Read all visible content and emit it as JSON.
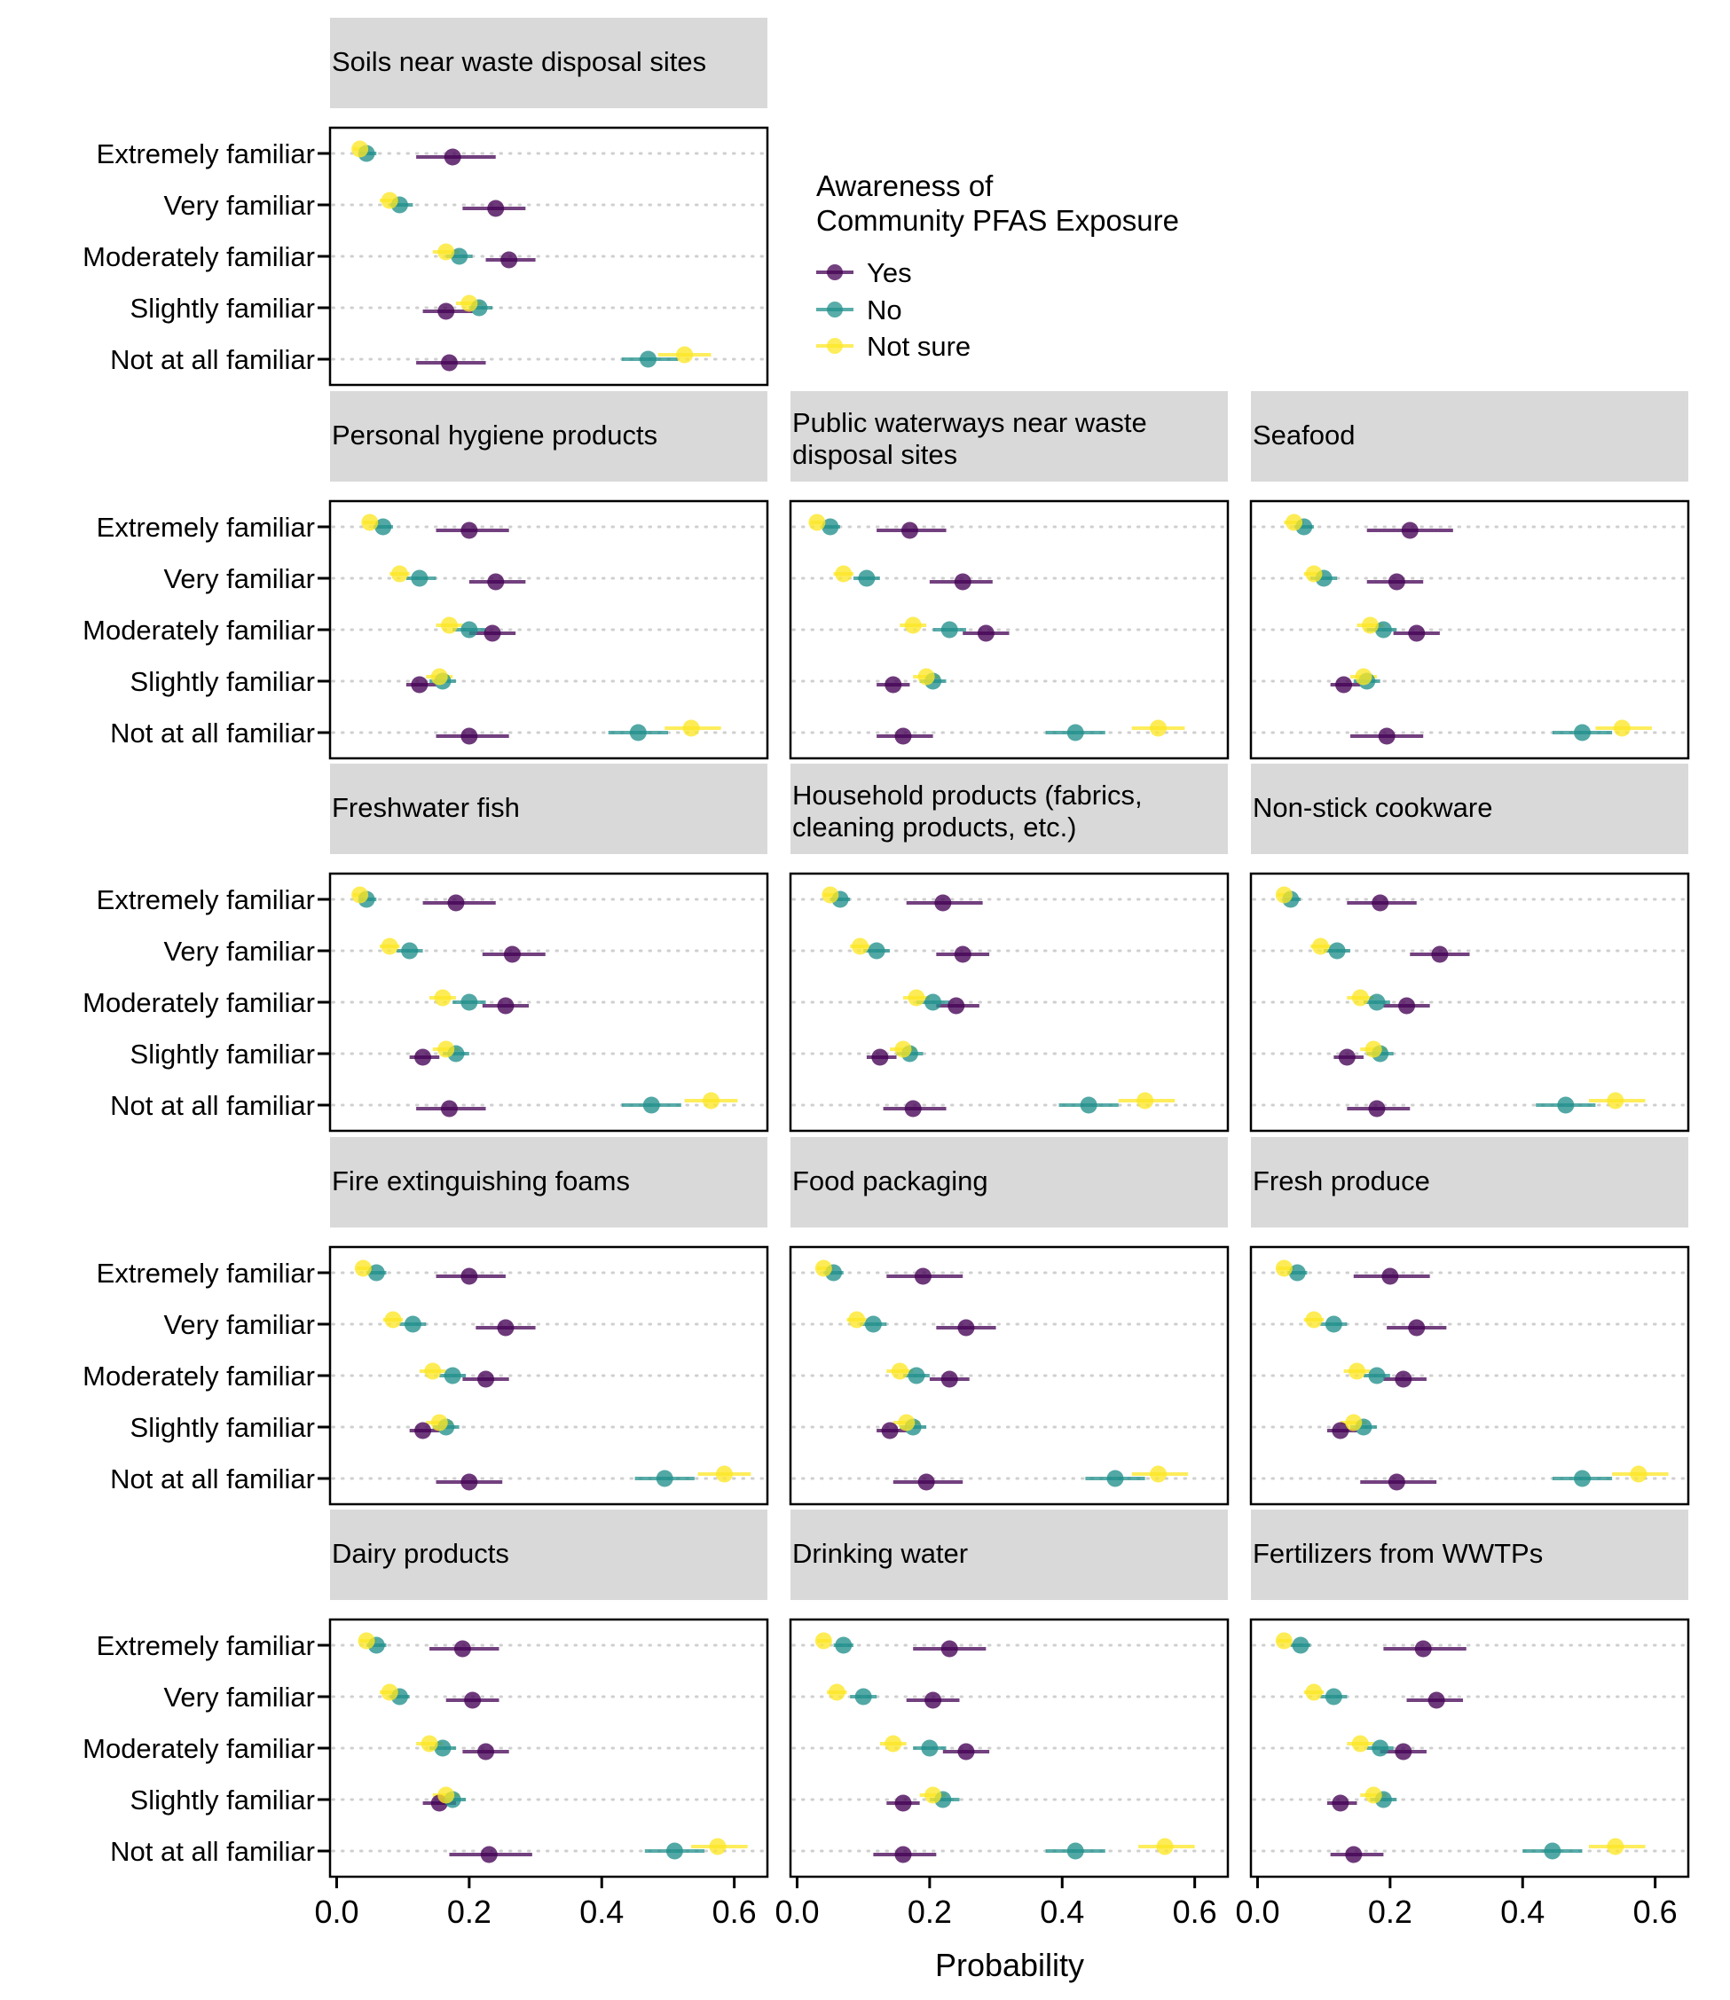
{
  "chart_data": {
    "type": "scatter",
    "subtype": "faceted dot-and-interval plot",
    "xlabel": "Probability",
    "ylabel": "",
    "xlim": [
      -0.01,
      0.65
    ],
    "x_ticks": [
      "0.0",
      "0.2",
      "0.4",
      "0.6"
    ],
    "x_tick_values": [
      0.0,
      0.2,
      0.4,
      0.6
    ],
    "categories": [
      "Extremely familiar",
      "Very familiar",
      "Moderately familiar",
      "Slightly familiar",
      "Not at all familiar"
    ],
    "grid": "dotted horizontal gridlines",
    "legend": {
      "title_lines": [
        "Awareness of",
        "Community PFAS Exposure"
      ],
      "placement": "top-center",
      "entries": [
        {
          "name": "Yes",
          "color": "#440154"
        },
        {
          "name": "No",
          "color": "#21908C"
        },
        {
          "name": "Not sure",
          "color": "#FDE725"
        }
      ]
    },
    "series_colors": {
      "yes": "#440154",
      "no": "#21908C",
      "not_sure": "#FDE725"
    },
    "panels": [
      {
        "title_lines": [
          "Soils near waste disposal sites"
        ],
        "yes": [
          [
            0.175,
            0.12,
            0.24
          ],
          [
            0.24,
            0.19,
            0.285
          ],
          [
            0.26,
            0.225,
            0.3
          ],
          [
            0.165,
            0.13,
            0.205
          ],
          [
            0.17,
            0.12,
            0.225
          ]
        ],
        "no": [
          [
            0.045,
            0.035,
            0.06
          ],
          [
            0.095,
            0.08,
            0.115
          ],
          [
            0.185,
            0.165,
            0.205
          ],
          [
            0.215,
            0.2,
            0.235
          ],
          [
            0.47,
            0.43,
            0.515
          ]
        ],
        "not_sure": [
          [
            0.035,
            0.025,
            0.05
          ],
          [
            0.08,
            0.065,
            0.095
          ],
          [
            0.165,
            0.145,
            0.185
          ],
          [
            0.2,
            0.18,
            0.22
          ],
          [
            0.525,
            0.485,
            0.565
          ]
        ]
      },
      {
        "title_lines": [
          "Personal hygiene products"
        ],
        "yes": [
          [
            0.2,
            0.15,
            0.26
          ],
          [
            0.24,
            0.2,
            0.285
          ],
          [
            0.235,
            0.2,
            0.27
          ],
          [
            0.125,
            0.105,
            0.15
          ],
          [
            0.2,
            0.15,
            0.26
          ]
        ],
        "no": [
          [
            0.07,
            0.055,
            0.085
          ],
          [
            0.125,
            0.105,
            0.15
          ],
          [
            0.2,
            0.175,
            0.225
          ],
          [
            0.16,
            0.14,
            0.18
          ],
          [
            0.455,
            0.41,
            0.5
          ]
        ],
        "not_sure": [
          [
            0.05,
            0.04,
            0.065
          ],
          [
            0.095,
            0.08,
            0.11
          ],
          [
            0.17,
            0.15,
            0.19
          ],
          [
            0.155,
            0.135,
            0.175
          ],
          [
            0.535,
            0.495,
            0.58
          ]
        ]
      },
      {
        "title_lines": [
          "Public waterways near waste",
          "disposal sites"
        ],
        "yes": [
          [
            0.17,
            0.12,
            0.225
          ],
          [
            0.25,
            0.2,
            0.295
          ],
          [
            0.285,
            0.25,
            0.32
          ],
          [
            0.145,
            0.12,
            0.17
          ],
          [
            0.16,
            0.12,
            0.205
          ]
        ],
        "no": [
          [
            0.05,
            0.04,
            0.065
          ],
          [
            0.105,
            0.085,
            0.125
          ],
          [
            0.23,
            0.205,
            0.255
          ],
          [
            0.205,
            0.185,
            0.225
          ],
          [
            0.42,
            0.375,
            0.465
          ]
        ],
        "not_sure": [
          [
            0.03,
            0.02,
            0.04
          ],
          [
            0.07,
            0.055,
            0.085
          ],
          [
            0.175,
            0.155,
            0.195
          ],
          [
            0.195,
            0.175,
            0.215
          ],
          [
            0.545,
            0.505,
            0.585
          ]
        ]
      },
      {
        "title_lines": [
          "Seafood"
        ],
        "yes": [
          [
            0.23,
            0.165,
            0.295
          ],
          [
            0.21,
            0.165,
            0.25
          ],
          [
            0.24,
            0.205,
            0.275
          ],
          [
            0.13,
            0.11,
            0.155
          ],
          [
            0.195,
            0.14,
            0.25
          ]
        ],
        "no": [
          [
            0.07,
            0.055,
            0.085
          ],
          [
            0.1,
            0.08,
            0.12
          ],
          [
            0.19,
            0.165,
            0.21
          ],
          [
            0.165,
            0.145,
            0.185
          ],
          [
            0.49,
            0.445,
            0.535
          ]
        ],
        "not_sure": [
          [
            0.055,
            0.04,
            0.07
          ],
          [
            0.085,
            0.07,
            0.1
          ],
          [
            0.17,
            0.15,
            0.19
          ],
          [
            0.16,
            0.14,
            0.18
          ],
          [
            0.55,
            0.51,
            0.595
          ]
        ]
      },
      {
        "title_lines": [
          "Freshwater fish"
        ],
        "yes": [
          [
            0.18,
            0.13,
            0.24
          ],
          [
            0.265,
            0.22,
            0.315
          ],
          [
            0.255,
            0.22,
            0.29
          ],
          [
            0.13,
            0.11,
            0.155
          ],
          [
            0.17,
            0.12,
            0.225
          ]
        ],
        "no": [
          [
            0.045,
            0.035,
            0.06
          ],
          [
            0.11,
            0.09,
            0.13
          ],
          [
            0.2,
            0.175,
            0.225
          ],
          [
            0.18,
            0.16,
            0.2
          ],
          [
            0.475,
            0.43,
            0.52
          ]
        ],
        "not_sure": [
          [
            0.035,
            0.025,
            0.045
          ],
          [
            0.08,
            0.065,
            0.095
          ],
          [
            0.16,
            0.14,
            0.18
          ],
          [
            0.165,
            0.145,
            0.185
          ],
          [
            0.565,
            0.525,
            0.605
          ]
        ]
      },
      {
        "title_lines": [
          "Household products (fabrics,",
          "cleaning products, etc.)"
        ],
        "yes": [
          [
            0.22,
            0.165,
            0.28
          ],
          [
            0.25,
            0.21,
            0.29
          ],
          [
            0.24,
            0.21,
            0.275
          ],
          [
            0.125,
            0.105,
            0.15
          ],
          [
            0.175,
            0.13,
            0.225
          ]
        ],
        "no": [
          [
            0.065,
            0.05,
            0.08
          ],
          [
            0.12,
            0.1,
            0.14
          ],
          [
            0.205,
            0.18,
            0.23
          ],
          [
            0.17,
            0.15,
            0.19
          ],
          [
            0.44,
            0.395,
            0.485
          ]
        ],
        "not_sure": [
          [
            0.05,
            0.04,
            0.06
          ],
          [
            0.095,
            0.08,
            0.11
          ],
          [
            0.18,
            0.16,
            0.2
          ],
          [
            0.16,
            0.14,
            0.18
          ],
          [
            0.525,
            0.485,
            0.57
          ]
        ]
      },
      {
        "title_lines": [
          "Non-stick cookware"
        ],
        "yes": [
          [
            0.185,
            0.135,
            0.24
          ],
          [
            0.275,
            0.23,
            0.32
          ],
          [
            0.225,
            0.19,
            0.26
          ],
          [
            0.135,
            0.115,
            0.16
          ],
          [
            0.18,
            0.135,
            0.23
          ]
        ],
        "no": [
          [
            0.05,
            0.04,
            0.065
          ],
          [
            0.12,
            0.1,
            0.14
          ],
          [
            0.18,
            0.16,
            0.2
          ],
          [
            0.185,
            0.165,
            0.205
          ],
          [
            0.465,
            0.42,
            0.51
          ]
        ],
        "not_sure": [
          [
            0.04,
            0.03,
            0.05
          ],
          [
            0.095,
            0.08,
            0.11
          ],
          [
            0.155,
            0.135,
            0.175
          ],
          [
            0.175,
            0.155,
            0.195
          ],
          [
            0.54,
            0.5,
            0.585
          ]
        ]
      },
      {
        "title_lines": [
          "Fire extinguishing foams"
        ],
        "yes": [
          [
            0.2,
            0.15,
            0.255
          ],
          [
            0.255,
            0.21,
            0.3
          ],
          [
            0.225,
            0.19,
            0.26
          ],
          [
            0.13,
            0.11,
            0.155
          ],
          [
            0.2,
            0.15,
            0.25
          ]
        ],
        "no": [
          [
            0.06,
            0.045,
            0.075
          ],
          [
            0.115,
            0.095,
            0.135
          ],
          [
            0.175,
            0.155,
            0.195
          ],
          [
            0.165,
            0.145,
            0.185
          ],
          [
            0.495,
            0.45,
            0.54
          ]
        ],
        "not_sure": [
          [
            0.04,
            0.03,
            0.055
          ],
          [
            0.085,
            0.07,
            0.1
          ],
          [
            0.145,
            0.125,
            0.165
          ],
          [
            0.155,
            0.135,
            0.175
          ],
          [
            0.585,
            0.545,
            0.625
          ]
        ]
      },
      {
        "title_lines": [
          "Food packaging"
        ],
        "yes": [
          [
            0.19,
            0.135,
            0.25
          ],
          [
            0.255,
            0.21,
            0.3
          ],
          [
            0.23,
            0.2,
            0.26
          ],
          [
            0.14,
            0.12,
            0.165
          ],
          [
            0.195,
            0.145,
            0.25
          ]
        ],
        "no": [
          [
            0.055,
            0.04,
            0.07
          ],
          [
            0.115,
            0.095,
            0.135
          ],
          [
            0.18,
            0.16,
            0.2
          ],
          [
            0.175,
            0.155,
            0.195
          ],
          [
            0.48,
            0.435,
            0.525
          ]
        ],
        "not_sure": [
          [
            0.04,
            0.03,
            0.055
          ],
          [
            0.09,
            0.075,
            0.105
          ],
          [
            0.155,
            0.135,
            0.175
          ],
          [
            0.165,
            0.145,
            0.185
          ],
          [
            0.545,
            0.505,
            0.59
          ]
        ]
      },
      {
        "title_lines": [
          "Fresh produce"
        ],
        "yes": [
          [
            0.2,
            0.145,
            0.26
          ],
          [
            0.24,
            0.195,
            0.285
          ],
          [
            0.22,
            0.19,
            0.255
          ],
          [
            0.125,
            0.105,
            0.15
          ],
          [
            0.21,
            0.155,
            0.27
          ]
        ],
        "no": [
          [
            0.06,
            0.045,
            0.075
          ],
          [
            0.115,
            0.095,
            0.135
          ],
          [
            0.18,
            0.16,
            0.2
          ],
          [
            0.16,
            0.14,
            0.18
          ],
          [
            0.49,
            0.445,
            0.535
          ]
        ],
        "not_sure": [
          [
            0.04,
            0.03,
            0.055
          ],
          [
            0.085,
            0.07,
            0.1
          ],
          [
            0.15,
            0.13,
            0.17
          ],
          [
            0.145,
            0.125,
            0.165
          ],
          [
            0.575,
            0.535,
            0.62
          ]
        ]
      },
      {
        "title_lines": [
          "Dairy products"
        ],
        "yes": [
          [
            0.19,
            0.14,
            0.245
          ],
          [
            0.205,
            0.165,
            0.245
          ],
          [
            0.225,
            0.19,
            0.26
          ],
          [
            0.155,
            0.13,
            0.18
          ],
          [
            0.23,
            0.17,
            0.295
          ]
        ],
        "no": [
          [
            0.06,
            0.045,
            0.075
          ],
          [
            0.095,
            0.08,
            0.11
          ],
          [
            0.16,
            0.14,
            0.18
          ],
          [
            0.175,
            0.155,
            0.195
          ],
          [
            0.51,
            0.465,
            0.555
          ]
        ],
        "not_sure": [
          [
            0.045,
            0.035,
            0.06
          ],
          [
            0.08,
            0.065,
            0.095
          ],
          [
            0.14,
            0.12,
            0.16
          ],
          [
            0.165,
            0.145,
            0.185
          ],
          [
            0.575,
            0.535,
            0.62
          ]
        ]
      },
      {
        "title_lines": [
          "Drinking water"
        ],
        "yes": [
          [
            0.23,
            0.175,
            0.285
          ],
          [
            0.205,
            0.165,
            0.245
          ],
          [
            0.255,
            0.22,
            0.29
          ],
          [
            0.16,
            0.135,
            0.185
          ],
          [
            0.16,
            0.115,
            0.21
          ]
        ],
        "no": [
          [
            0.07,
            0.055,
            0.085
          ],
          [
            0.1,
            0.08,
            0.12
          ],
          [
            0.2,
            0.175,
            0.225
          ],
          [
            0.22,
            0.2,
            0.245
          ],
          [
            0.42,
            0.375,
            0.465
          ]
        ],
        "not_sure": [
          [
            0.04,
            0.03,
            0.05
          ],
          [
            0.06,
            0.045,
            0.075
          ],
          [
            0.145,
            0.125,
            0.165
          ],
          [
            0.205,
            0.185,
            0.225
          ],
          [
            0.555,
            0.515,
            0.6
          ]
        ]
      },
      {
        "title_lines": [
          "Fertilizers from WWTPs"
        ],
        "yes": [
          [
            0.25,
            0.19,
            0.315
          ],
          [
            0.27,
            0.225,
            0.31
          ],
          [
            0.22,
            0.185,
            0.255
          ],
          [
            0.125,
            0.105,
            0.15
          ],
          [
            0.145,
            0.11,
            0.19
          ]
        ],
        "no": [
          [
            0.065,
            0.05,
            0.08
          ],
          [
            0.115,
            0.095,
            0.135
          ],
          [
            0.185,
            0.165,
            0.205
          ],
          [
            0.19,
            0.17,
            0.21
          ],
          [
            0.445,
            0.4,
            0.49
          ]
        ],
        "not_sure": [
          [
            0.04,
            0.03,
            0.05
          ],
          [
            0.085,
            0.07,
            0.1
          ],
          [
            0.155,
            0.135,
            0.175
          ],
          [
            0.175,
            0.155,
            0.195
          ],
          [
            0.54,
            0.5,
            0.585
          ]
        ]
      }
    ]
  }
}
